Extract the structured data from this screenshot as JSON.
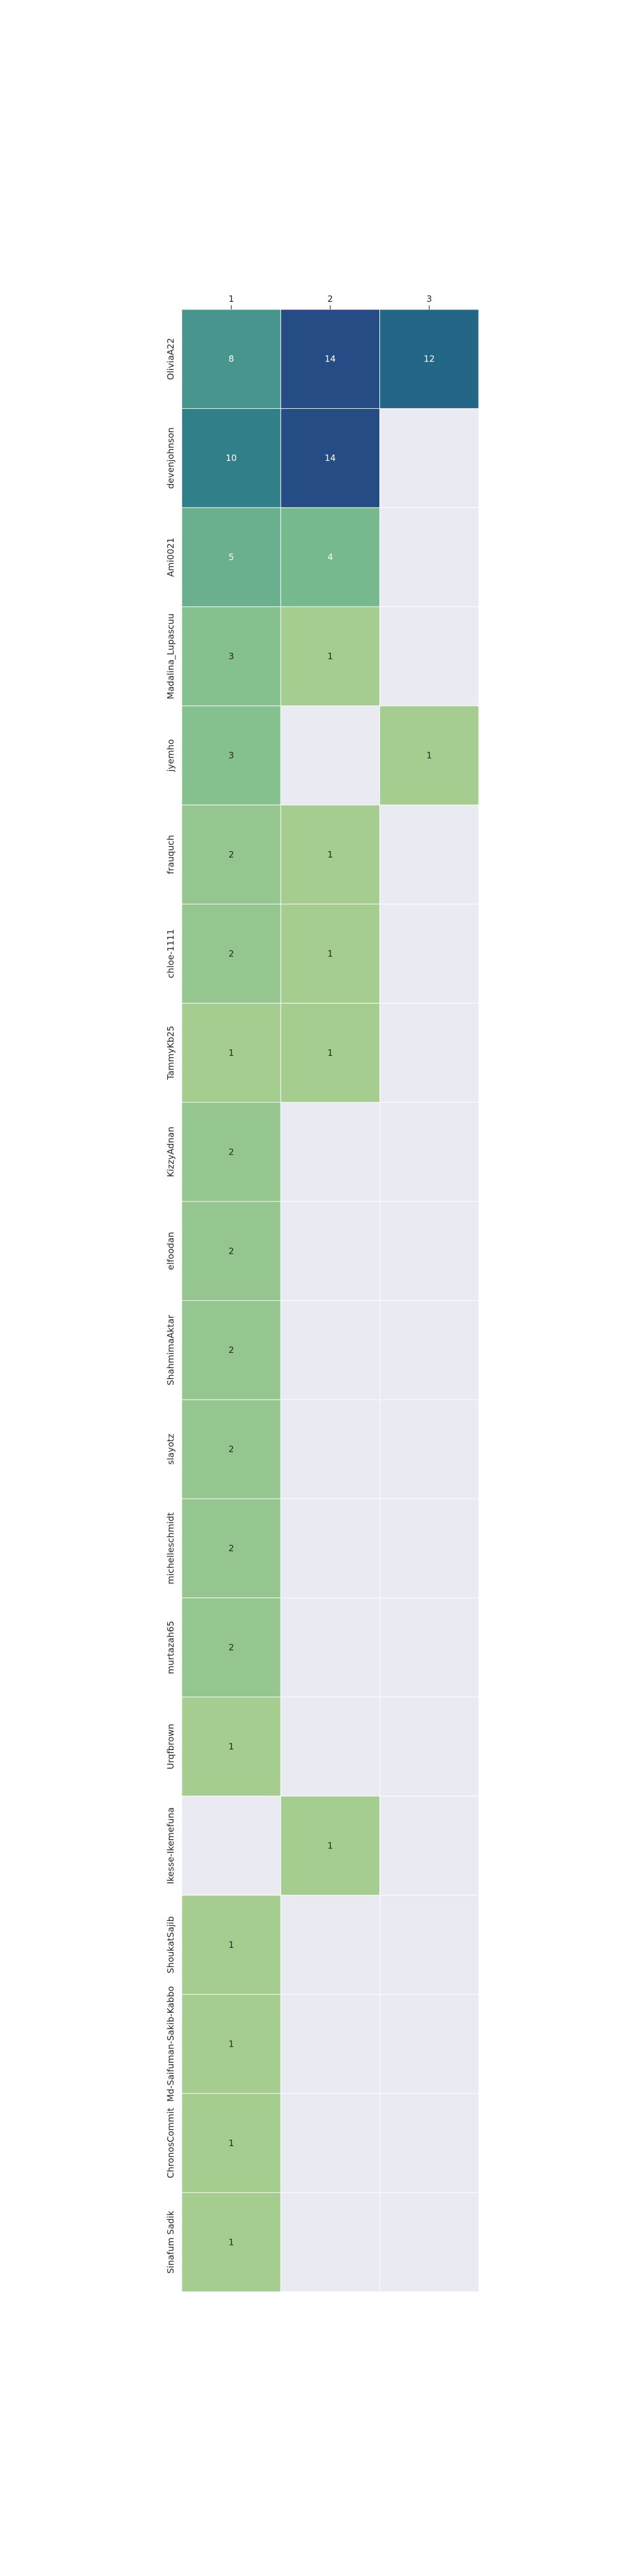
{
  "chart_data": {
    "type": "heatmap",
    "x_categories": [
      "1",
      "2",
      "3"
    ],
    "y_categories": [
      "OliviaA22",
      "devenjohnson",
      "Ami0021",
      "Madalina_Lupascuu",
      "jyemho",
      "frauquch",
      "chloe-1111",
      "TammyKb25",
      "KizzyAdnan",
      "elfoodan",
      "ShahmimaAktar",
      "slayotz",
      "michelleschmidt",
      "murtazah65",
      "Urqfbrown",
      "Ikesse-Ikemefuna",
      "ShoukatSajib",
      "Md-Saifuman-Sakib-Kabbo",
      "ChronosCommit",
      "Sinafum Sadik"
    ],
    "values": [
      [
        8,
        14,
        12
      ],
      [
        10,
        14,
        null
      ],
      [
        5,
        4,
        null
      ],
      [
        3,
        1,
        null
      ],
      [
        3,
        null,
        1
      ],
      [
        2,
        1,
        null
      ],
      [
        2,
        1,
        null
      ],
      [
        1,
        1,
        null
      ],
      [
        2,
        null,
        null
      ],
      [
        2,
        null,
        null
      ],
      [
        2,
        null,
        null
      ],
      [
        2,
        null,
        null
      ],
      [
        2,
        null,
        null
      ],
      [
        2,
        null,
        null
      ],
      [
        1,
        null,
        null
      ],
      [
        null,
        1,
        null
      ],
      [
        1,
        null,
        null
      ],
      [
        1,
        null,
        null
      ],
      [
        1,
        null,
        null
      ],
      [
        1,
        null,
        null
      ]
    ],
    "color_scale": "crest",
    "value_range": [
      1,
      14
    ],
    "empty_cell_color": "#eaeaf2",
    "annotated": true,
    "x_ticks_position": "top",
    "title": "",
    "xlabel": "",
    "ylabel": ""
  }
}
